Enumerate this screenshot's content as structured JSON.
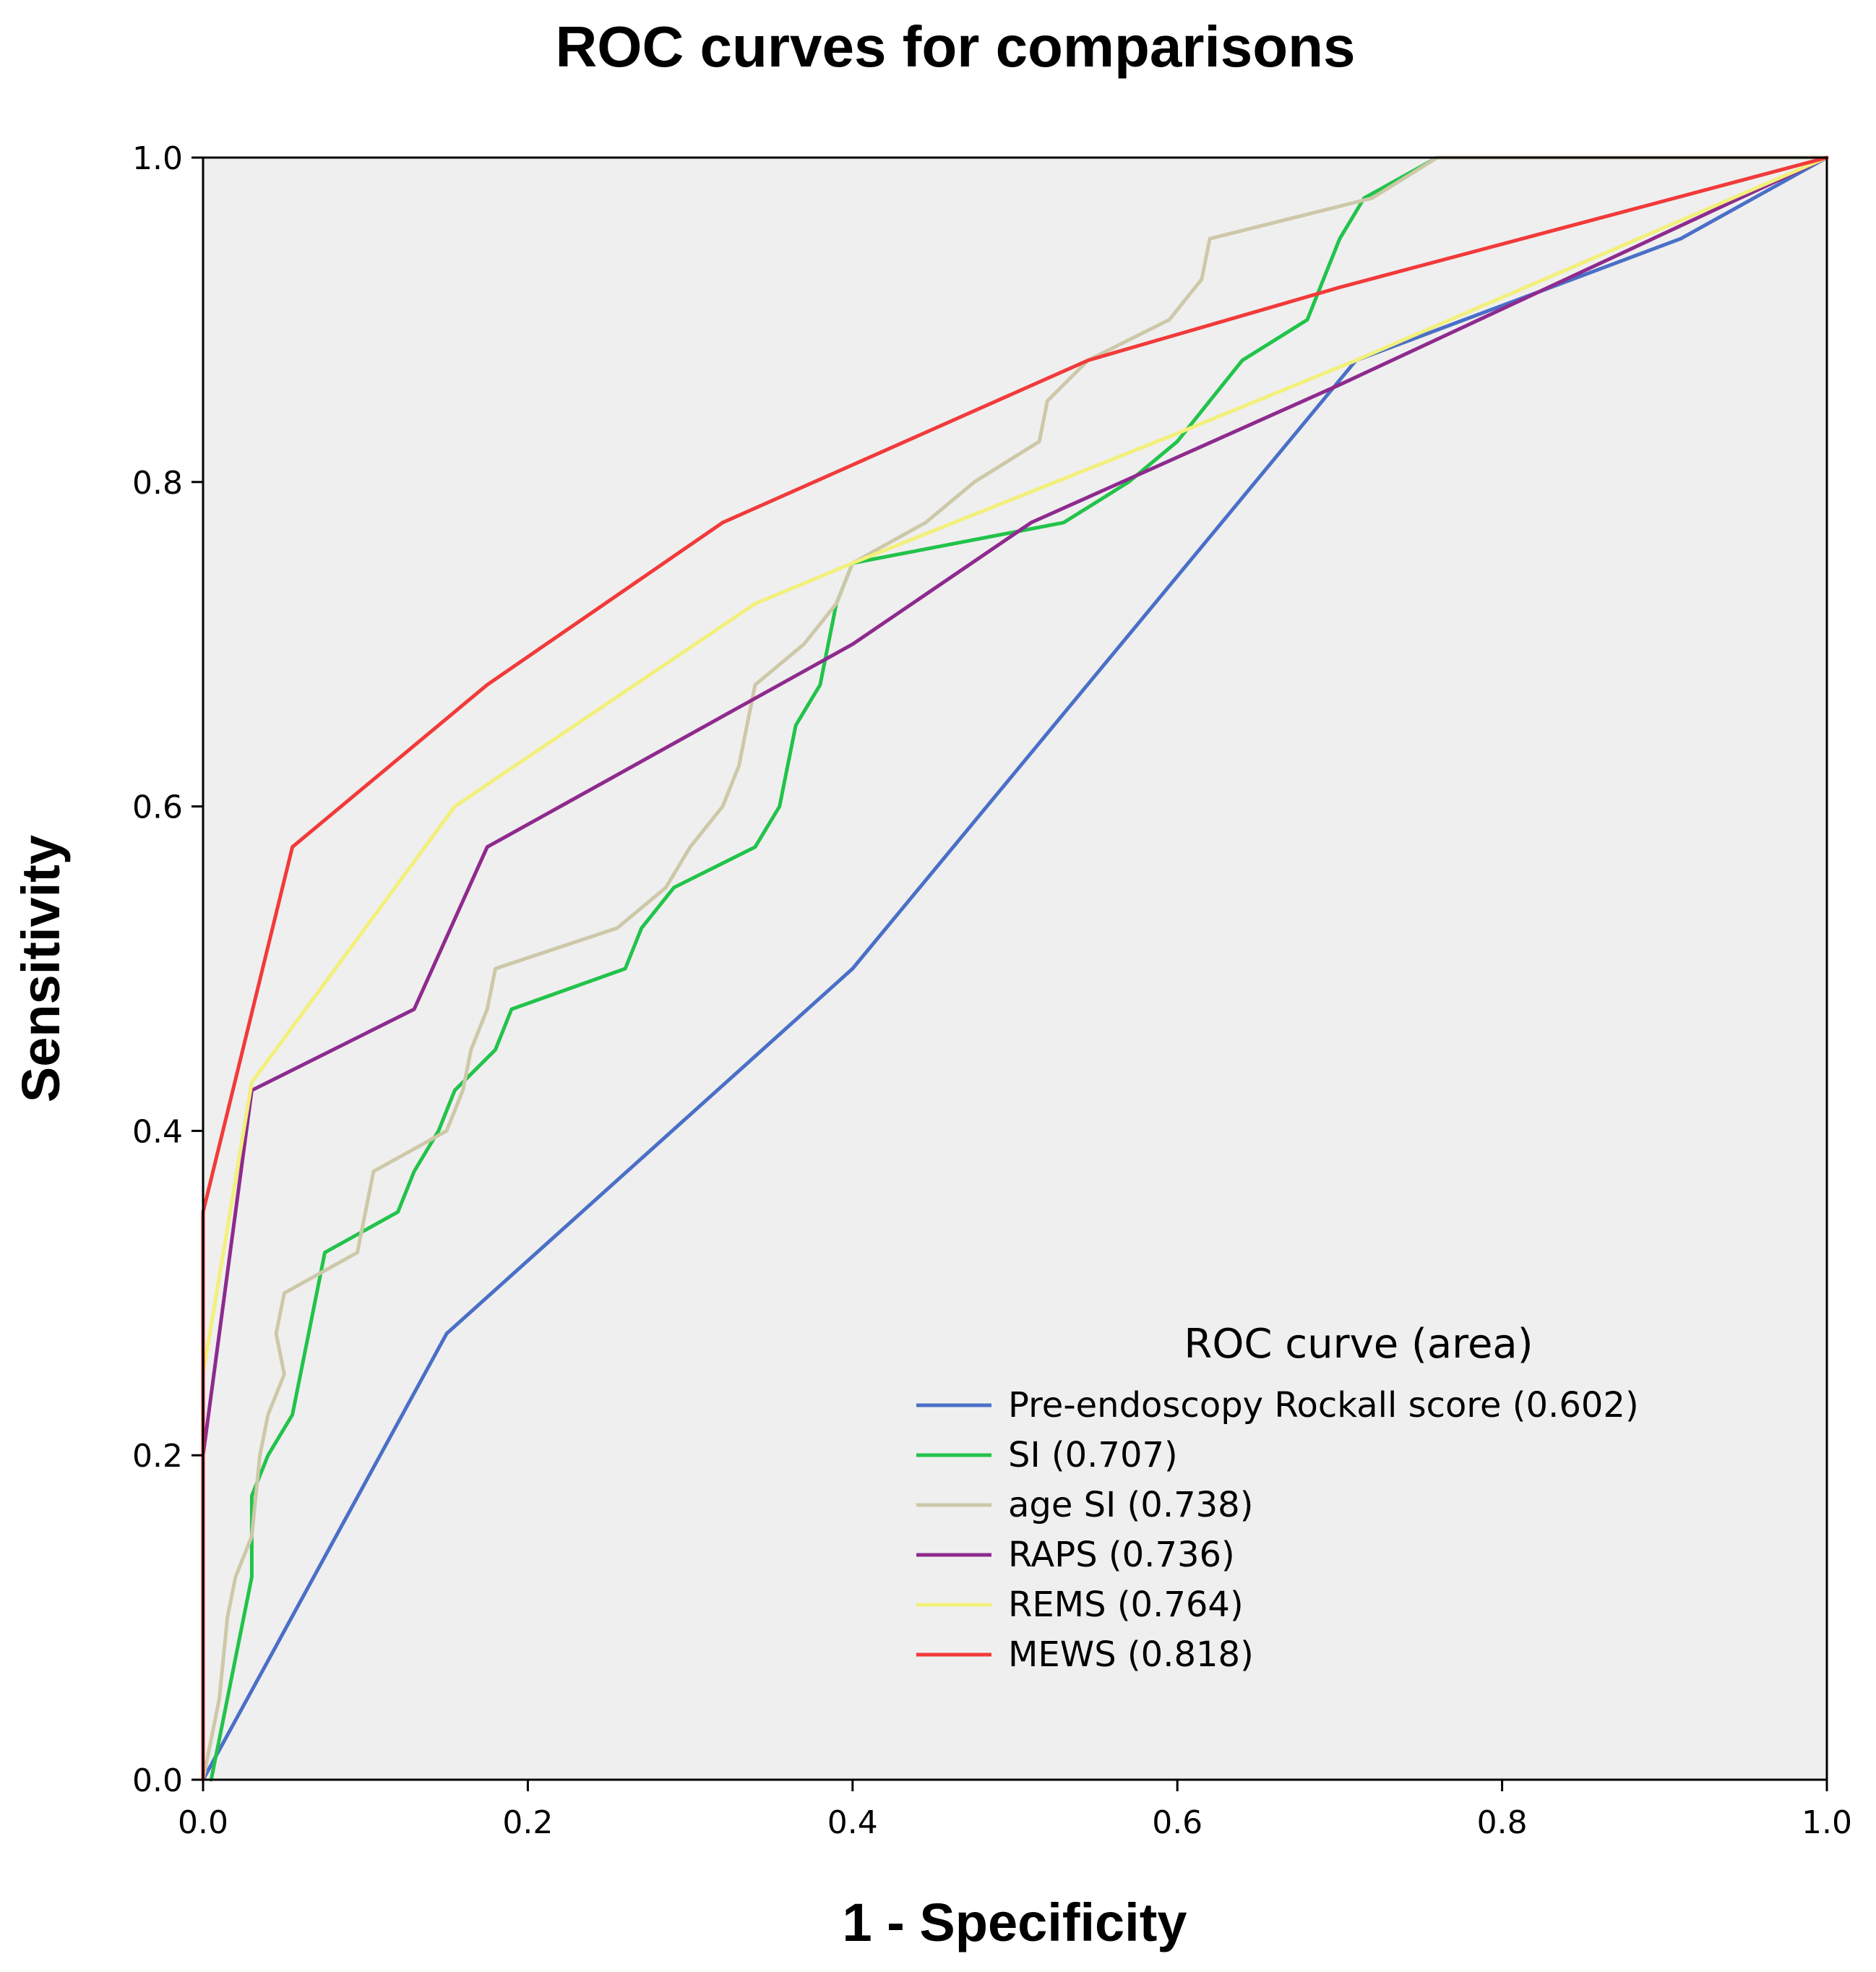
{
  "chart_data": {
    "type": "line",
    "title": "ROC curves for comparisons",
    "xlabel": "1 - Specificity",
    "ylabel": "Sensitivity",
    "xlim": [
      0,
      1
    ],
    "ylim": [
      0,
      1
    ],
    "x_ticks": [
      "0.0",
      "0.2",
      "0.4",
      "0.6",
      "0.8",
      "1.0"
    ],
    "y_ticks": [
      "0.0",
      "0.2",
      "0.4",
      "0.6",
      "0.8",
      "1.0"
    ],
    "grid": false,
    "background": "#efefef",
    "legend": {
      "title": "ROC curve (area)",
      "placement": "bottom-right"
    },
    "series": [
      {
        "name": "Pre-endoscopy Rockall score (0.602)",
        "color": "#4a6fc7",
        "points": [
          [
            0,
            0
          ],
          [
            0.15,
            0.275
          ],
          [
            0.4,
            0.5
          ],
          [
            0.71,
            0.875
          ],
          [
            0.91,
            0.95
          ],
          [
            1,
            1
          ]
        ]
      },
      {
        "name": "SI (0.707)",
        "color": "#22c34a",
        "points": [
          [
            0.005,
            0
          ],
          [
            0.01,
            0.025
          ],
          [
            0.015,
            0.05
          ],
          [
            0.02,
            0.075
          ],
          [
            0.025,
            0.1
          ],
          [
            0.03,
            0.125
          ],
          [
            0.03,
            0.175
          ],
          [
            0.04,
            0.2
          ],
          [
            0.055,
            0.225
          ],
          [
            0.06,
            0.25
          ],
          [
            0.065,
            0.275
          ],
          [
            0.07,
            0.3
          ],
          [
            0.075,
            0.325
          ],
          [
            0.12,
            0.35
          ],
          [
            0.13,
            0.375
          ],
          [
            0.145,
            0.4
          ],
          [
            0.155,
            0.425
          ],
          [
            0.18,
            0.45
          ],
          [
            0.19,
            0.475
          ],
          [
            0.26,
            0.5
          ],
          [
            0.27,
            0.525
          ],
          [
            0.29,
            0.55
          ],
          [
            0.34,
            0.575
          ],
          [
            0.355,
            0.6
          ],
          [
            0.36,
            0.625
          ],
          [
            0.365,
            0.65
          ],
          [
            0.38,
            0.675
          ],
          [
            0.385,
            0.7
          ],
          [
            0.39,
            0.725
          ],
          [
            0.4,
            0.75
          ],
          [
            0.53,
            0.775
          ],
          [
            0.57,
            0.8
          ],
          [
            0.6,
            0.825
          ],
          [
            0.62,
            0.85
          ],
          [
            0.64,
            0.875
          ],
          [
            0.68,
            0.9
          ],
          [
            0.69,
            0.925
          ],
          [
            0.7,
            0.95
          ],
          [
            0.715,
            0.975
          ],
          [
            0.76,
            1
          ],
          [
            1,
            1
          ]
        ]
      },
      {
        "name": "age SI (0.738)",
        "color": "#cdc8a8",
        "points": [
          [
            0,
            0
          ],
          [
            0.01,
            0.05
          ],
          [
            0.015,
            0.1
          ],
          [
            0.02,
            0.125
          ],
          [
            0.03,
            0.15
          ],
          [
            0.035,
            0.2
          ],
          [
            0.04,
            0.225
          ],
          [
            0.05,
            0.25
          ],
          [
            0.045,
            0.275
          ],
          [
            0.05,
            0.3
          ],
          [
            0.095,
            0.325
          ],
          [
            0.1,
            0.35
          ],
          [
            0.105,
            0.375
          ],
          [
            0.15,
            0.4
          ],
          [
            0.16,
            0.425
          ],
          [
            0.165,
            0.45
          ],
          [
            0.175,
            0.475
          ],
          [
            0.18,
            0.5
          ],
          [
            0.255,
            0.525
          ],
          [
            0.285,
            0.55
          ],
          [
            0.3,
            0.575
          ],
          [
            0.32,
            0.6
          ],
          [
            0.33,
            0.625
          ],
          [
            0.335,
            0.65
          ],
          [
            0.34,
            0.675
          ],
          [
            0.37,
            0.7
          ],
          [
            0.39,
            0.725
          ],
          [
            0.4,
            0.75
          ],
          [
            0.445,
            0.775
          ],
          [
            0.475,
            0.8
          ],
          [
            0.515,
            0.825
          ],
          [
            0.52,
            0.85
          ],
          [
            0.545,
            0.875
          ],
          [
            0.595,
            0.9
          ],
          [
            0.615,
            0.925
          ],
          [
            0.62,
            0.95
          ],
          [
            0.72,
            0.975
          ],
          [
            0.76,
            1
          ],
          [
            1,
            1
          ]
        ]
      },
      {
        "name": "RAPS (0.736)",
        "color": "#8e2a8e",
        "points": [
          [
            0,
            0
          ],
          [
            0,
            0.2
          ],
          [
            0.03,
            0.425
          ],
          [
            0.13,
            0.475
          ],
          [
            0.175,
            0.575
          ],
          [
            0.4,
            0.7
          ],
          [
            0.51,
            0.775
          ],
          [
            0.7,
            0.86
          ],
          [
            1,
            1
          ]
        ]
      },
      {
        "name": "REMS (0.764)",
        "color": "#f2f07a",
        "points": [
          [
            0,
            0
          ],
          [
            0,
            0.25
          ],
          [
            0.03,
            0.43
          ],
          [
            0.155,
            0.6
          ],
          [
            0.34,
            0.725
          ],
          [
            0.4,
            0.75
          ],
          [
            0.6,
            0.83
          ],
          [
            0.71,
            0.875
          ],
          [
            1,
            1
          ]
        ]
      },
      {
        "name": "MEWS (0.818)",
        "color": "#f23a3a",
        "points": [
          [
            0,
            0
          ],
          [
            0,
            0.35
          ],
          [
            0.055,
            0.575
          ],
          [
            0.175,
            0.675
          ],
          [
            0.32,
            0.775
          ],
          [
            0.545,
            0.875
          ],
          [
            0.7,
            0.92
          ],
          [
            1,
            1
          ]
        ]
      }
    ]
  }
}
